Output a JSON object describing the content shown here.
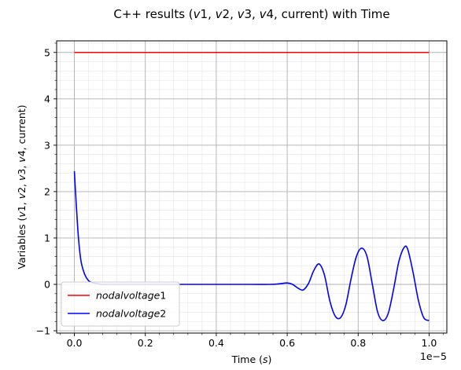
{
  "chart_data": {
    "type": "line",
    "title": {
      "prefix": "C++ results (",
      "vars": [
        "v1",
        "v2",
        "v3",
        "v4"
      ],
      "suffix": ", current) with Time"
    },
    "xlabel": {
      "prefix": "Time (",
      "var": "s",
      "suffix": ")"
    },
    "ylabel": {
      "prefix": "Variables (",
      "vars": [
        "v1",
        "v2",
        "v3",
        "v4"
      ],
      "suffix": ", current)"
    },
    "x_multiplier_label": "1e−5",
    "xlim": [
      -0.05,
      1.05
    ],
    "ylim": [
      -1.05,
      5.25
    ],
    "x_ticks": [
      0.0,
      0.2,
      0.4,
      0.6,
      0.8,
      1.0
    ],
    "x_tick_labels": [
      "0.0",
      "0.2",
      "0.4",
      "0.6",
      "0.8",
      "1.0"
    ],
    "y_ticks": [
      -1,
      0,
      1,
      2,
      3,
      4,
      5
    ],
    "y_tick_labels": [
      "−1",
      "0",
      "1",
      "2",
      "3",
      "4",
      "5"
    ],
    "grid": true,
    "minor_grid": true,
    "legend_position": "lower-left",
    "series": [
      {
        "name": "nodalvoltage1",
        "legend_italic": "nodalvoltage",
        "legend_suffix": "1",
        "color": "#ff0000",
        "x": [
          0.0,
          1.0
        ],
        "y": [
          5.0,
          5.0
        ]
      },
      {
        "name": "nodalvoltage2",
        "legend_italic": "nodalvoltage",
        "legend_suffix": "2",
        "color": "#0000ff",
        "x": [
          0.0,
          0.005,
          0.01,
          0.015,
          0.02,
          0.03,
          0.04,
          0.05,
          0.06,
          0.08,
          0.1,
          0.15,
          0.2,
          0.3,
          0.4,
          0.5,
          0.55,
          0.575,
          0.6,
          0.615,
          0.63,
          0.645,
          0.66,
          0.675,
          0.69,
          0.705,
          0.72,
          0.735,
          0.75,
          0.765,
          0.78,
          0.795,
          0.81,
          0.825,
          0.84,
          0.855,
          0.87,
          0.885,
          0.9,
          0.915,
          0.93,
          0.94,
          0.955,
          0.97,
          0.985,
          1.0
        ],
        "y": [
          2.44,
          1.75,
          1.15,
          0.72,
          0.45,
          0.2,
          0.08,
          0.04,
          0.02,
          0.0,
          0.0,
          0.0,
          0.0,
          0.0,
          0.0,
          0.0,
          0.0,
          0.01,
          0.03,
          0.0,
          -0.08,
          -0.12,
          0.02,
          0.3,
          0.44,
          0.2,
          -0.35,
          -0.68,
          -0.72,
          -0.45,
          0.12,
          0.6,
          0.78,
          0.6,
          0.0,
          -0.6,
          -0.78,
          -0.62,
          -0.1,
          0.5,
          0.8,
          0.75,
          0.25,
          -0.35,
          -0.72,
          -0.78
        ]
      }
    ]
  }
}
